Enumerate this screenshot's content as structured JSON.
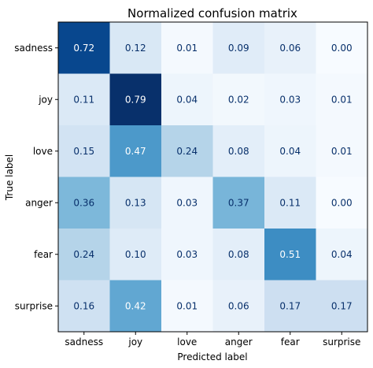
{
  "chart_data": {
    "type": "heatmap",
    "title": "Normalized confusion matrix",
    "xlabel": "Predicted label",
    "ylabel": "True label",
    "x_categories": [
      "sadness",
      "joy",
      "love",
      "anger",
      "fear",
      "surprise"
    ],
    "y_categories": [
      "sadness",
      "joy",
      "love",
      "anger",
      "fear",
      "surprise"
    ],
    "values": [
      [
        0.72,
        0.12,
        0.01,
        0.09,
        0.06,
        0.0
      ],
      [
        0.11,
        0.79,
        0.04,
        0.02,
        0.03,
        0.01
      ],
      [
        0.15,
        0.47,
        0.24,
        0.08,
        0.04,
        0.01
      ],
      [
        0.36,
        0.13,
        0.03,
        0.37,
        0.11,
        0.0
      ],
      [
        0.24,
        0.1,
        0.03,
        0.08,
        0.51,
        0.04
      ],
      [
        0.16,
        0.42,
        0.01,
        0.06,
        0.17,
        0.17
      ]
    ],
    "value_labels": [
      [
        "0.72",
        "0.12",
        "0.01",
        "0.09",
        "0.06",
        "0.00"
      ],
      [
        "0.11",
        "0.79",
        "0.04",
        "0.02",
        "0.03",
        "0.01"
      ],
      [
        "0.15",
        "0.47",
        "0.24",
        "0.08",
        "0.04",
        "0.01"
      ],
      [
        "0.36",
        "0.13",
        "0.03",
        "0.37",
        "0.11",
        "0.00"
      ],
      [
        "0.24",
        "0.10",
        "0.03",
        "0.08",
        "0.51",
        "0.04"
      ],
      [
        "0.16",
        "0.42",
        "0.01",
        "0.06",
        "0.17",
        "0.17"
      ]
    ],
    "colormap": "Blues",
    "vrange": [
      0,
      0.79
    ],
    "grid": false
  }
}
